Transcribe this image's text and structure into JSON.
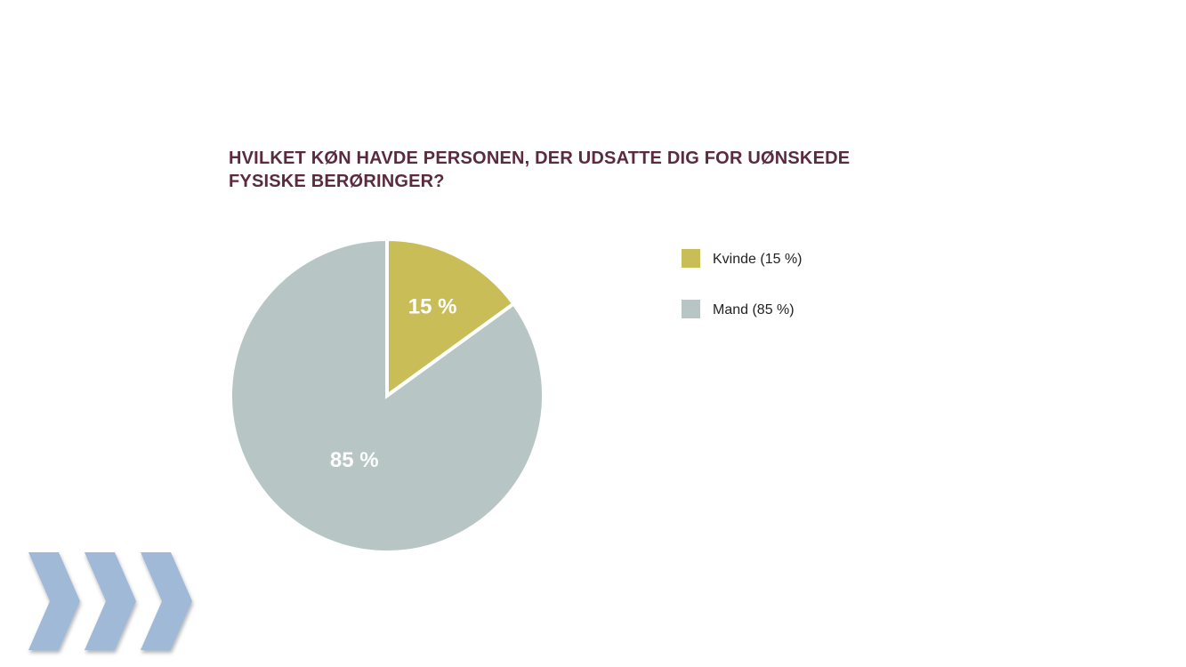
{
  "chart_data": {
    "type": "pie",
    "title_lines": [
      "HVILKET KØN HAVDE PERSONEN, DER UDSATTE DIG FOR UØNSKEDE",
      "FYSISKE BERØRINGER?"
    ],
    "slices": [
      {
        "label": "Kvinde (15 %)",
        "value": 15,
        "data_label": "15 %",
        "color": "#c9bd57"
      },
      {
        "label": "Mand (85 %)",
        "value": 85,
        "data_label": "85 %",
        "color": "#b7c6c5"
      }
    ],
    "legend_position": "right"
  },
  "decoration": {
    "chevron_icon_color": "#9fb9d6",
    "chevron_count": 3
  }
}
